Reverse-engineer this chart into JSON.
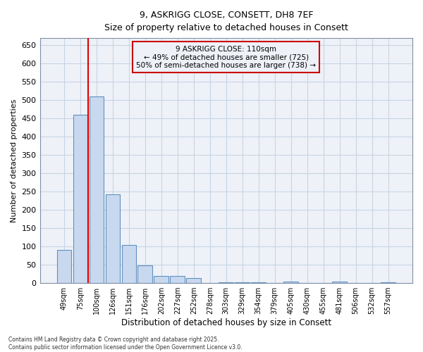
{
  "title_line1": "9, ASKRIGG CLOSE, CONSETT, DH8 7EF",
  "title_line2": "Size of property relative to detached houses in Consett",
  "xlabel": "Distribution of detached houses by size in Consett",
  "ylabel": "Number of detached properties",
  "categories": [
    "49sqm",
    "75sqm",
    "100sqm",
    "126sqm",
    "151sqm",
    "176sqm",
    "202sqm",
    "227sqm",
    "252sqm",
    "278sqm",
    "303sqm",
    "329sqm",
    "354sqm",
    "379sqm",
    "405sqm",
    "430sqm",
    "455sqm",
    "481sqm",
    "506sqm",
    "532sqm",
    "557sqm"
  ],
  "values": [
    90,
    460,
    510,
    243,
    105,
    48,
    20,
    20,
    13,
    0,
    3,
    3,
    3,
    0,
    4,
    0,
    0,
    4,
    0,
    0,
    3
  ],
  "bar_color": "#c8d8ee",
  "bar_edge_color": "#6090c0",
  "marker_label": "9 ASKRIGG CLOSE: 110sqm",
  "marker_sub1": "← 49% of detached houses are smaller (725)",
  "marker_sub2": "50% of semi-detached houses are larger (738) →",
  "vline_color": "#dd0000",
  "annotation_box_color": "#cc0000",
  "ylim": [
    0,
    670
  ],
  "yticks": [
    0,
    50,
    100,
    150,
    200,
    250,
    300,
    350,
    400,
    450,
    500,
    550,
    600,
    650
  ],
  "footer_line1": "Contains HM Land Registry data © Crown copyright and database right 2025.",
  "footer_line2": "Contains public sector information licensed under the Open Government Licence v3.0.",
  "plot_bg_color": "#eef2f8",
  "fig_bg_color": "#ffffff",
  "grid_color": "#c8d4e4"
}
